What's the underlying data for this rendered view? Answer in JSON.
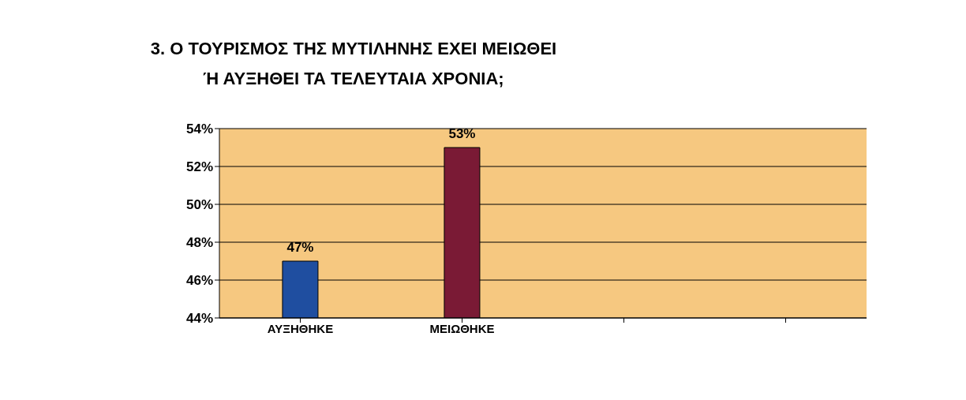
{
  "chart_data": {
    "type": "bar",
    "title": "3. Ο ΤΟΥΡΙΣΜΟΣ ΤΗΣ ΜΥΤΙΛΗΝΗΣ ΕΧΕΙ ΜΕΙΩΘΕΙ Ή ΑΥΞΗΘΕΙ ΤΑ ΤΕΛΕΥΤΑΙΑ ΧΡΟΝΙΑ;",
    "categories": [
      "ΑΥΞΗΘΗΚΕ",
      "ΜΕΙΩΘΗΚΕ",
      null,
      null
    ],
    "values": [
      47,
      53,
      null,
      null
    ],
    "colors": [
      "#1f4ea0",
      "#7a1a35",
      "#7a1a35",
      "#7a1a35"
    ],
    "value_labels": [
      "47%",
      "53%",
      null,
      null
    ],
    "ylim": [
      44,
      54
    ],
    "yticks": [
      {
        "value": 44,
        "label": "44%"
      },
      {
        "value": 46,
        "label": "46%"
      },
      {
        "value": 48,
        "label": "48%"
      },
      {
        "value": 50,
        "label": "50%"
      },
      {
        "value": 52,
        "label": "52%"
      },
      {
        "value": 54,
        "label": "54%"
      }
    ],
    "grid": "y"
  }
}
